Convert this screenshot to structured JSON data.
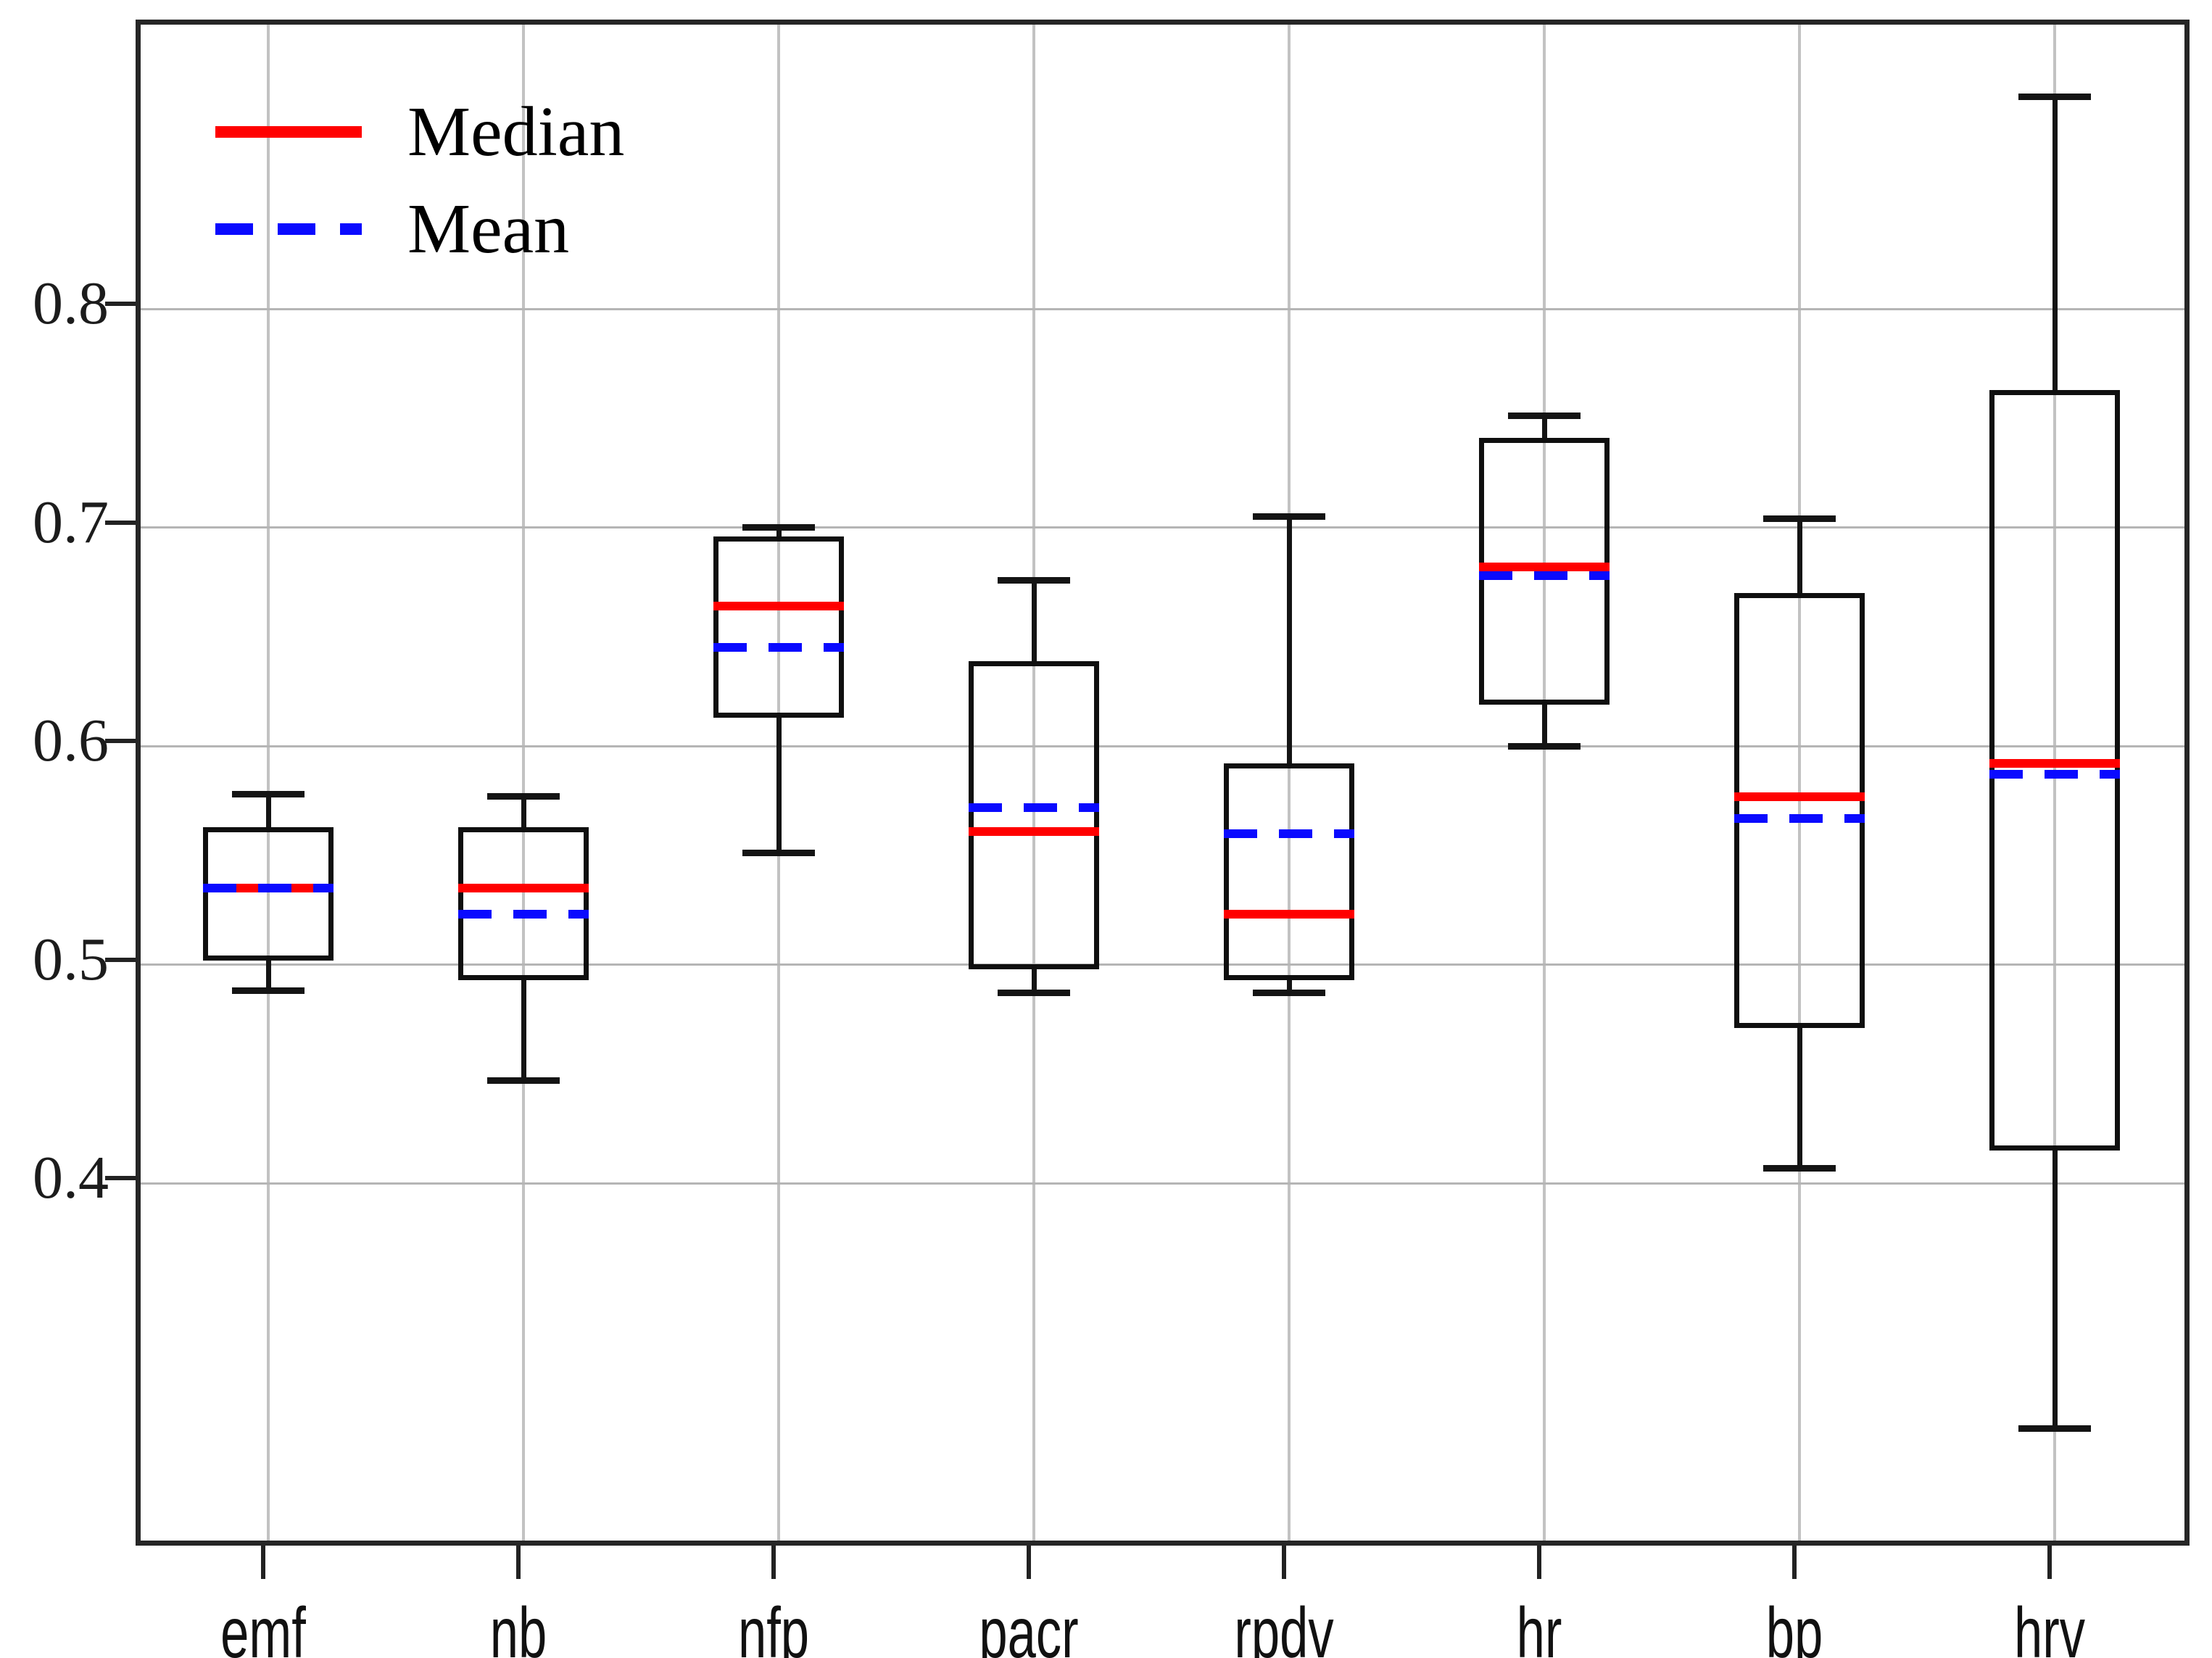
{
  "figure": {
    "background": "#ffffff",
    "axis_color": "#262626",
    "grid_color": "#bdbdbd"
  },
  "legend": {
    "items": [
      {
        "label": "Median",
        "color": "#ff0000",
        "style": "solid"
      },
      {
        "label": "Mean",
        "color": "#0a0aff",
        "style": "dashed"
      }
    ]
  },
  "chart_data": {
    "type": "boxplot",
    "title": "",
    "xlabel": "",
    "ylabel": "",
    "grid": true,
    "legend_position": "upper-left",
    "ylim": [
      0.232,
      0.93
    ],
    "y_ticks": [
      0.4,
      0.5,
      0.6,
      0.7,
      0.8
    ],
    "categories": [
      "emf",
      "nb",
      "nfp",
      "pacr",
      "rpdv",
      "hr",
      "bp",
      "hrv"
    ],
    "median_color": "#ff0000",
    "mean_color": "#0a0aff",
    "box_color": "#0f0f0f",
    "series": [
      {
        "name": "emf",
        "whisker_low": 0.488,
        "q1": 0.502,
        "median": 0.535,
        "mean": 0.535,
        "q3": 0.563,
        "whisker_high": 0.578
      },
      {
        "name": "nb",
        "whisker_low": 0.447,
        "q1": 0.493,
        "median": 0.535,
        "mean": 0.523,
        "q3": 0.563,
        "whisker_high": 0.577
      },
      {
        "name": "nfp",
        "whisker_low": 0.551,
        "q1": 0.613,
        "median": 0.664,
        "mean": 0.645,
        "q3": 0.696,
        "whisker_high": 0.7
      },
      {
        "name": "pacr",
        "whisker_low": 0.487,
        "q1": 0.498,
        "median": 0.561,
        "mean": 0.572,
        "q3": 0.639,
        "whisker_high": 0.676
      },
      {
        "name": "rpdv",
        "whisker_low": 0.487,
        "q1": 0.493,
        "median": 0.523,
        "mean": 0.56,
        "q3": 0.592,
        "whisker_high": 0.705
      },
      {
        "name": "hr",
        "whisker_low": 0.6,
        "q1": 0.619,
        "median": 0.682,
        "mean": 0.678,
        "q3": 0.741,
        "whisker_high": 0.751
      },
      {
        "name": "bp",
        "whisker_low": 0.407,
        "q1": 0.471,
        "median": 0.577,
        "mean": 0.567,
        "q3": 0.67,
        "whisker_high": 0.704
      },
      {
        "name": "hrv",
        "whisker_low": 0.288,
        "q1": 0.415,
        "median": 0.592,
        "mean": 0.587,
        "q3": 0.763,
        "whisker_high": 0.897
      }
    ]
  }
}
